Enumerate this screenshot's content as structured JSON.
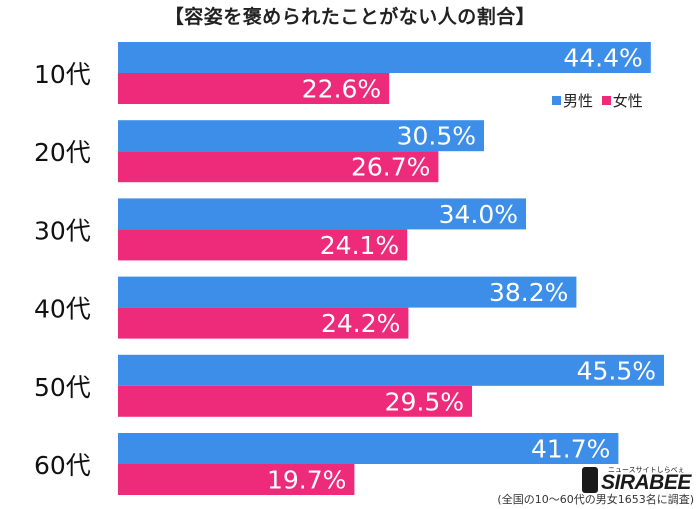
{
  "chart_data": {
    "type": "bar",
    "orientation": "horizontal",
    "title": "【容姿を褒められたことがない人の割合】",
    "categories": [
      "10代",
      "20代",
      "30代",
      "40代",
      "50代",
      "60代"
    ],
    "series": [
      {
        "name": "男性",
        "color": "#3d8ee8",
        "values": [
          44.4,
          30.5,
          34.0,
          38.2,
          45.5,
          41.7
        ]
      },
      {
        "name": "女性",
        "color": "#ee2a7b",
        "values": [
          22.6,
          26.7,
          24.1,
          24.2,
          29.5,
          19.7
        ]
      }
    ],
    "value_suffix": "%",
    "legend_position": "right",
    "grid": false
  },
  "brand": {
    "name": "SIRABEE",
    "tagline": "ニュースサイトしらべぇ"
  },
  "note": "(全国の10〜60代の男女1653名に調査)"
}
